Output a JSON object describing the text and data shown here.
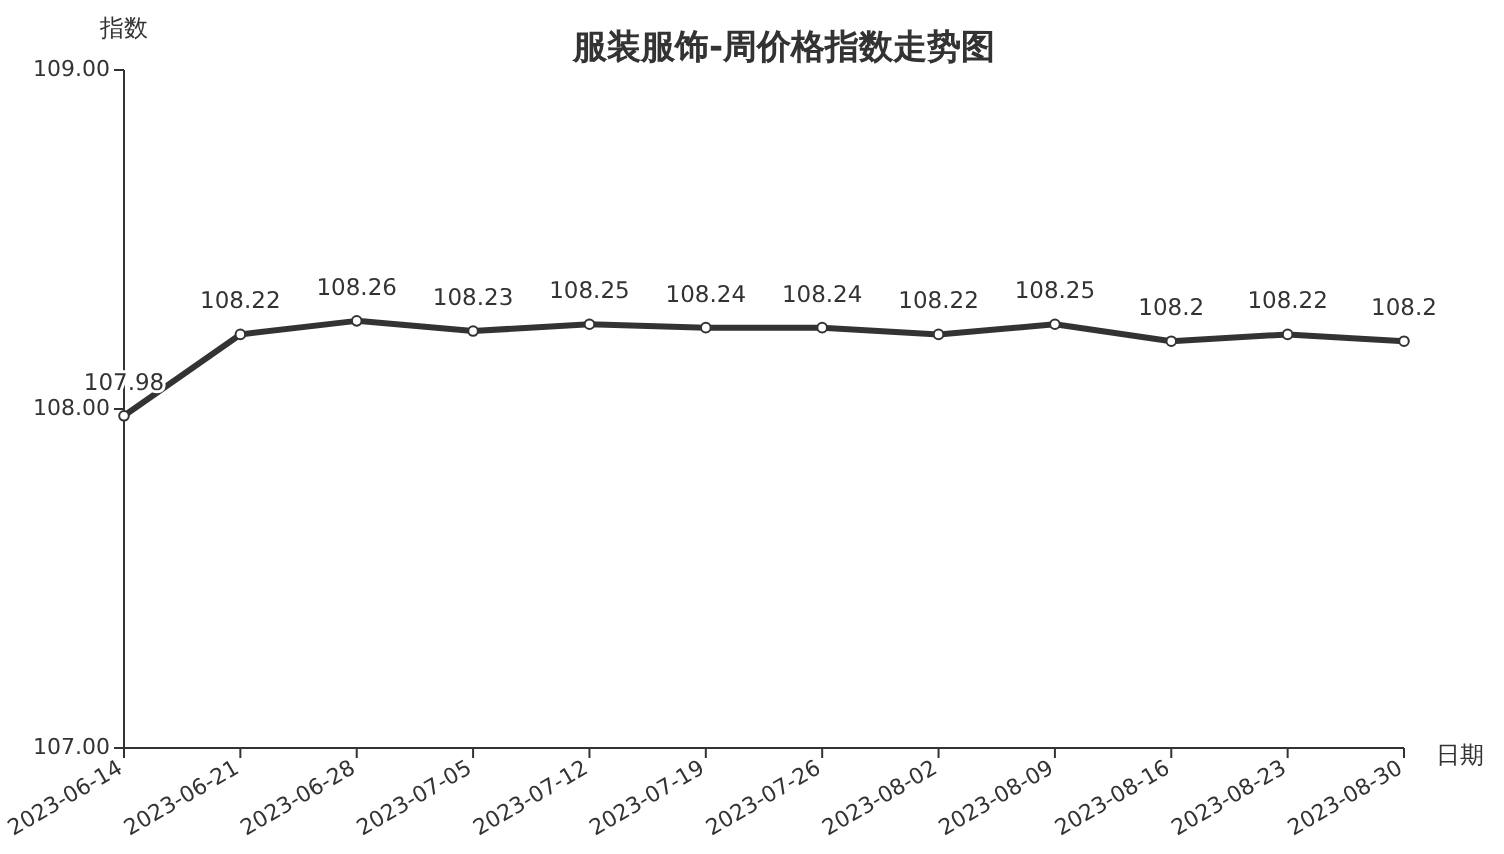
{
  "chart_data": {
    "type": "line",
    "title": "服装服饰-周价格指数走势图",
    "xlabel": "日期",
    "ylabel": "指数",
    "categories": [
      "2023-06-14",
      "2023-06-21",
      "2023-06-28",
      "2023-07-05",
      "2023-07-12",
      "2023-07-19",
      "2023-07-26",
      "2023-08-02",
      "2023-08-09",
      "2023-08-16",
      "2023-08-23",
      "2023-08-30"
    ],
    "values": [
      107.98,
      108.22,
      108.26,
      108.23,
      108.25,
      108.24,
      108.24,
      108.22,
      108.25,
      108.2,
      108.22,
      108.2
    ],
    "color": "#333333",
    "marker": "circle",
    "data_labels": true,
    "ylim": [
      107,
      109
    ],
    "yticks": [
      {
        "value": 107,
        "label": "107.00"
      },
      {
        "value": 108,
        "label": "108.00"
      },
      {
        "value": 109,
        "label": "109.00"
      }
    ]
  }
}
